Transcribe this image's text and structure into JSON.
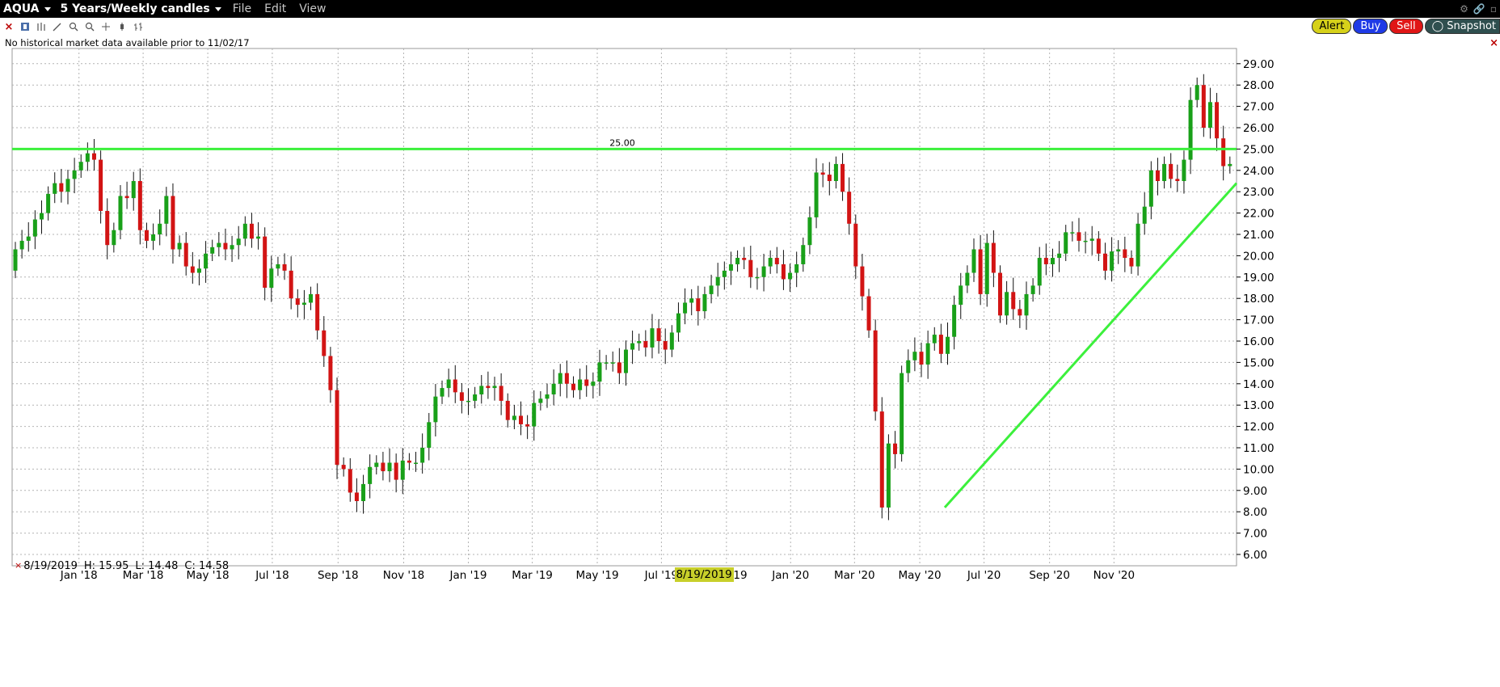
{
  "header": {
    "symbol": "AQUA",
    "period": "5 Years/Weekly candles",
    "menus": [
      "File",
      "Edit",
      "View"
    ]
  },
  "order_buttons": {
    "alert": "Alert",
    "buy": "Buy",
    "sell": "Sell",
    "snapshot": "Snapshot"
  },
  "notice": "No historical market data available prior to 11/02/17",
  "info": {
    "date": "8/19/2019",
    "high": "H: 15.95",
    "low": "L: 14.48",
    "close": "C: 14.58"
  },
  "highlighted_date": "8/19/2019",
  "colors": {
    "up": "#19a019",
    "down": "#d21414",
    "line": "#3cf03c",
    "highlight": "#c8cf2a"
  },
  "icons": [
    "close-icon",
    "bar-type-icon",
    "draw-tool-icon",
    "zoom-in-icon",
    "zoom-out-icon",
    "crosshair-icon",
    "candle-icon",
    "bar-icon",
    "gear-icon",
    "link-icon"
  ],
  "chart_data": {
    "type": "candlestick",
    "ylim": [
      5.5,
      29.5
    ],
    "yticks": [
      "6.00",
      "7.00",
      "8.00",
      "9.00",
      "10.00",
      "11.00",
      "12.00",
      "13.00",
      "14.00",
      "15.00",
      "16.00",
      "17.00",
      "18.00",
      "19.00",
      "20.00",
      "21.00",
      "22.00",
      "23.00",
      "24.00",
      "25.00",
      "26.00",
      "27.00",
      "28.00",
      "29.00"
    ],
    "xticks": [
      "Jan '18",
      "Mar '18",
      "May '18",
      "Jul '18",
      "Sep '18",
      "Nov '18",
      "Jan '19",
      "Mar '19",
      "May '19",
      "Jul '19",
      "8/19/2019",
      "Nov '19",
      "Jan '20",
      "Mar '20",
      "May '20",
      "Jul '20",
      "Sep '20",
      "Nov '20"
    ],
    "horizontal_line": {
      "value": 25.0,
      "label": "25.00"
    },
    "trend_line": {
      "from": [
        0.7617,
        8.2
      ],
      "to": [
        1.0,
        23.4
      ]
    },
    "closes": [
      20.3,
      20.7,
      20.9,
      21.7,
      22.0,
      22.9,
      23.4,
      23.0,
      23.6,
      24.0,
      24.4,
      24.8,
      24.5,
      22.1,
      20.5,
      21.2,
      22.8,
      22.7,
      23.5,
      21.2,
      20.7,
      21.0,
      21.5,
      22.8,
      20.3,
      20.6,
      19.5,
      19.2,
      19.4,
      20.1,
      20.4,
      20.6,
      20.3,
      20.5,
      20.8,
      21.5,
      20.8,
      20.9,
      18.5,
      19.4,
      19.6,
      19.3,
      18.0,
      17.7,
      17.8,
      18.2,
      16.5,
      15.3,
      13.7,
      10.2,
      10.0,
      8.9,
      8.5,
      9.3,
      10.1,
      10.3,
      9.9,
      10.3,
      9.5,
      10.4,
      10.3,
      10.3,
      11.0,
      12.2,
      13.4,
      13.8,
      14.2,
      13.6,
      13.2,
      13.2,
      13.5,
      13.9,
      13.8,
      13.9,
      13.2,
      12.3,
      12.5,
      12.1,
      12.0,
      13.1,
      13.3,
      13.5,
      14.0,
      14.5,
      14.0,
      13.7,
      14.2,
      13.9,
      14.1,
      15.0,
      15.0,
      15.0,
      14.5,
      15.6,
      15.9,
      16.0,
      15.7,
      16.6,
      16.0,
      15.6,
      16.4,
      17.3,
      17.8,
      18.0,
      17.4,
      18.2,
      18.6,
      19.0,
      19.3,
      19.6,
      19.9,
      19.8,
      19.0,
      19.0,
      19.5,
      19.9,
      19.6,
      18.9,
      19.2,
      19.6,
      20.5,
      21.8,
      23.9,
      23.8,
      23.5,
      24.3,
      23.0,
      21.5,
      19.5,
      18.1,
      16.5,
      12.7,
      8.2,
      11.2,
      10.7,
      14.5,
      15.1,
      15.5,
      14.9,
      15.9,
      16.3,
      15.4,
      16.2,
      17.7,
      18.6,
      19.2,
      20.3,
      18.2,
      20.6,
      19.2,
      17.2,
      18.3,
      17.5,
      17.2,
      18.2,
      18.6,
      19.9,
      19.6,
      19.9,
      20.1,
      21.1,
      21.1,
      20.7,
      20.7,
      20.8,
      20.1,
      19.3,
      20.2,
      20.3,
      19.9,
      19.5,
      21.5,
      22.3,
      24.0,
      23.5,
      24.3,
      23.6,
      23.5,
      24.5,
      27.3,
      28.0,
      26.0,
      27.2,
      25.5,
      24.2,
      24.3
    ]
  }
}
